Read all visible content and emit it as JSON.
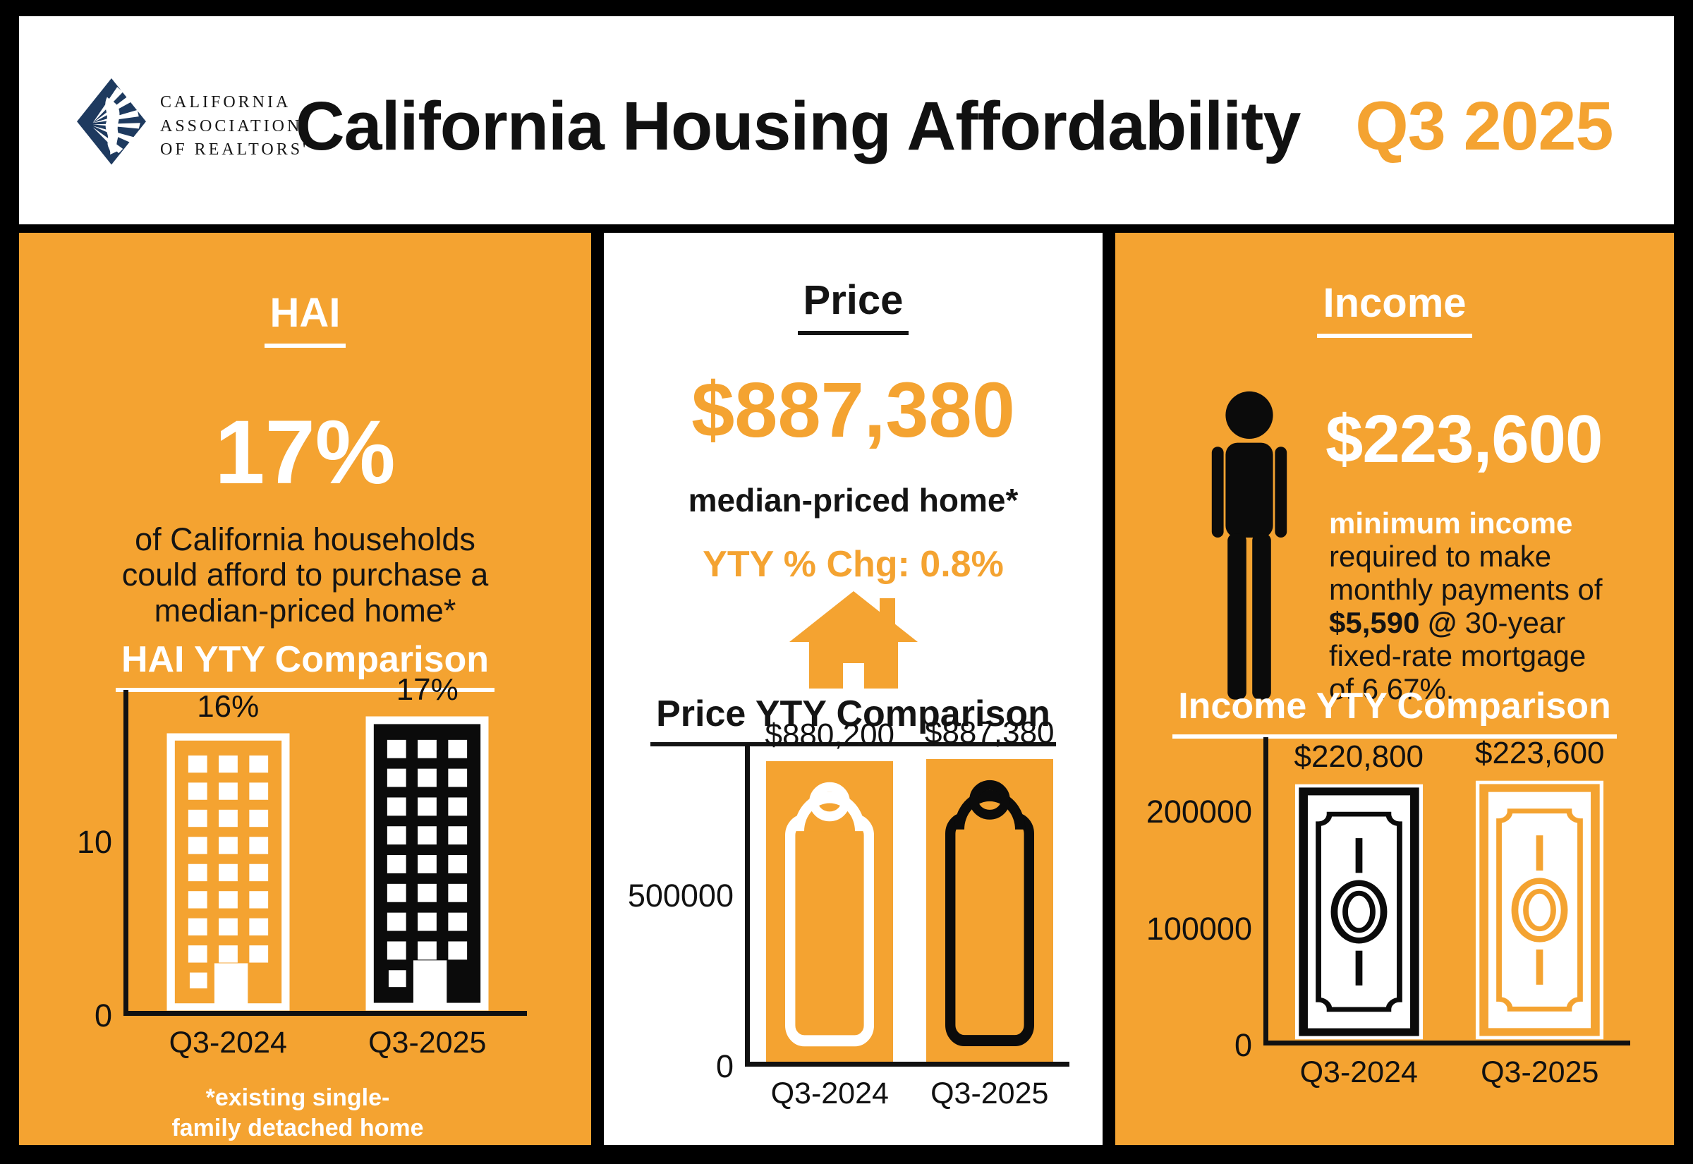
{
  "colors": {
    "orange": "#F4A331",
    "navy": "#1E3A5F",
    "ink": "#111111",
    "white": "#FFFFFF"
  },
  "header": {
    "logo_lines": [
      "CALIFORNIA",
      "ASSOCIATION",
      "OF REALTORS'"
    ],
    "title": "California Housing Affordability",
    "title_highlight": "Q3 2025"
  },
  "hai": {
    "title": "HAI",
    "value": "17%",
    "desc_lines": [
      "of California households",
      "could afford to purchase a",
      "median-priced home*"
    ],
    "footnote_lines": [
      "*existing single-",
      "family detached home"
    ]
  },
  "price": {
    "title": "Price",
    "value": "$887,380",
    "subtitle": "median-priced home*",
    "yty": "YTY % Chg: 0.8%"
  },
  "income": {
    "title": "Income",
    "value": "$223,600",
    "desc_line1": "minimum income",
    "desc_line2": "required to make",
    "desc_line3": "monthly payments of",
    "desc_line4_bold": "$5,590 @",
    "desc_line4_rest": " 30-year",
    "desc_line5": "fixed-rate mortgage",
    "desc_line6": "of 6.67%.",
    "chart_title": "Income YTY Comparison"
  },
  "icons": {
    "logo": "car-diamond-logo",
    "house": "house-icon",
    "person": "person-icon",
    "building_bars": "building-bar-icon",
    "price_tag_bars": "price-tag-bar-icon",
    "dollar_bill_bars": "dollar-bill-bar-icon"
  },
  "chart_data": [
    {
      "type": "bar",
      "title": "HAI YTY Comparison",
      "categories": [
        "Q3-2024",
        "Q3-2025"
      ],
      "values": [
        16,
        17
      ],
      "value_labels": [
        "16%",
        "17%"
      ],
      "yticks": [
        0,
        10
      ],
      "ylim": [
        0,
        18.5
      ],
      "xlabel": "",
      "ylabel": "",
      "grid": false,
      "legend": "none",
      "bar_style": [
        "orange-building-white-outline",
        "black-building-white-outline"
      ]
    },
    {
      "type": "bar",
      "title": "Price YTY Comparison",
      "categories": [
        "Q3-2024",
        "Q3-2025"
      ],
      "values": [
        880200,
        887380
      ],
      "value_labels": [
        "$880,200",
        "$887,380"
      ],
      "yticks": [
        0,
        500000
      ],
      "ylim": [
        0,
        930000
      ],
      "xlabel": "",
      "ylabel": "",
      "grid": false,
      "legend": "none",
      "bar_style": [
        "orange-bar-white-price-tag",
        "orange-bar-black-price-tag"
      ]
    },
    {
      "type": "bar",
      "title": "Income YTY Comparison",
      "categories": [
        "Q3-2024",
        "Q3-2025"
      ],
      "values": [
        220800,
        223600
      ],
      "value_labels": [
        "$220,800",
        "$223,600"
      ],
      "yticks": [
        0,
        100000,
        200000
      ],
      "ylim": [
        0,
        260000
      ],
      "xlabel": "",
      "ylabel": "",
      "grid": false,
      "legend": "none",
      "bar_style": [
        "white-dollar-bill-black-outline",
        "white-dollar-bill-orange-outline"
      ]
    }
  ]
}
